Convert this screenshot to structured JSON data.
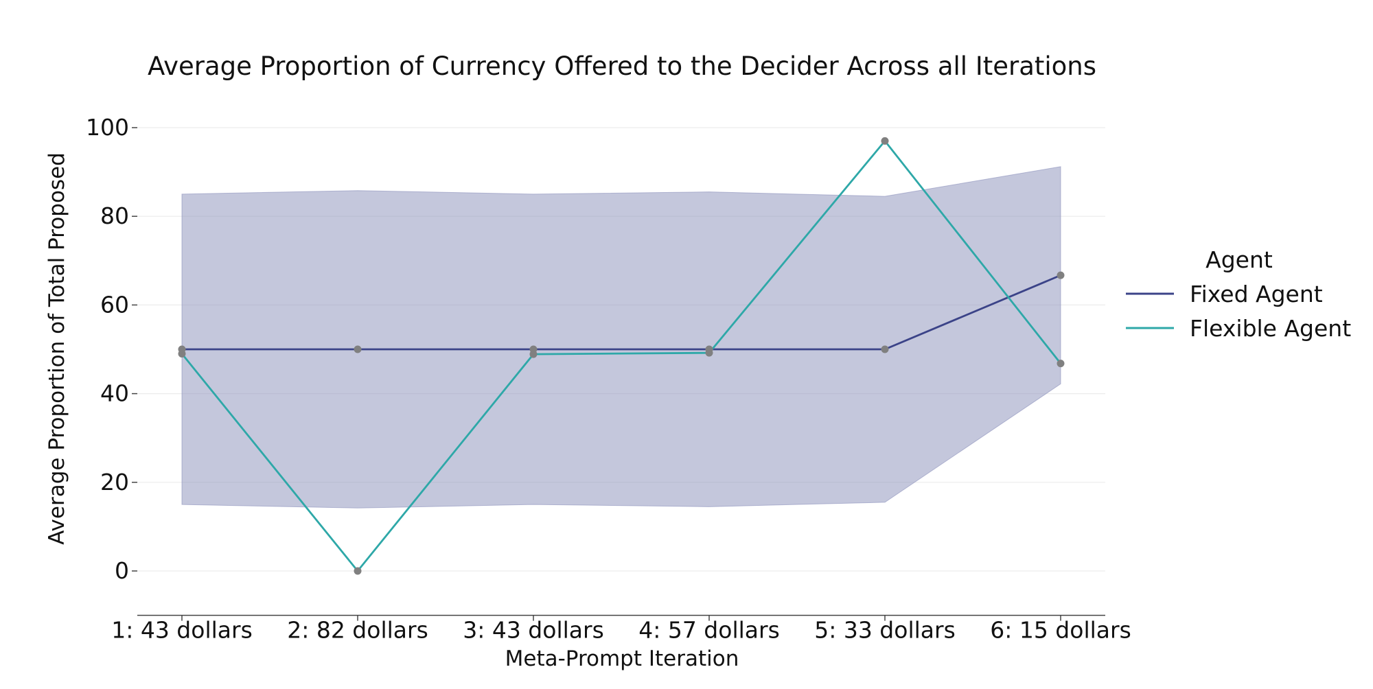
{
  "chart_data": {
    "type": "line",
    "title": "Average Proportion of Currency Offered to the Decider Across all Iterations",
    "xlabel": "Meta-Prompt Iteration",
    "ylabel": "Average Proportion of Total Proposed",
    "categories": [
      "1: 43 dollars",
      "2: 82 dollars",
      "3: 43 dollars",
      "4: 57 dollars",
      "5: 33 dollars",
      "6: 15 dollars"
    ],
    "y_ticks": [
      0,
      20,
      40,
      60,
      80,
      100
    ],
    "ylim": [
      -10,
      110
    ],
    "grid": "horizontal",
    "legend": {
      "title": "Agent",
      "placement": "right"
    },
    "series": [
      {
        "name": "Fixed Agent",
        "color": "#3b4388",
        "values": [
          50,
          50,
          50,
          50,
          50,
          66.7
        ],
        "band": {
          "lower": [
            15,
            14.2,
            15,
            14.5,
            15.5,
            42.2
          ],
          "upper": [
            85,
            85.8,
            85,
            85.5,
            84.5,
            91.2
          ],
          "color": "#8a8fba"
        }
      },
      {
        "name": "Flexible Agent",
        "color": "#2ea8a8",
        "values": [
          49,
          0,
          48.9,
          49.2,
          97,
          46.8
        ]
      }
    ]
  }
}
